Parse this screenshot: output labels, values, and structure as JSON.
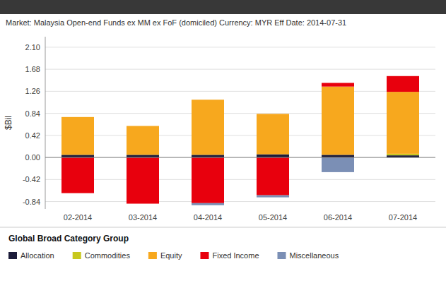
{
  "chart_data": {
    "type": "bar",
    "stacked": true,
    "grid": true,
    "legend": "bottom",
    "title": "Market: Malaysia Open-end Funds ex MM ex FoF (domiciled)   Currency: MYR   Eff Date: 2014-07-31",
    "ylabel": "$Bil",
    "legend_title": "Global Broad Category Group",
    "categories": [
      "02-2014",
      "03-2014",
      "04-2014",
      "05-2014",
      "06-2014",
      "07-2014"
    ],
    "ylim": [
      -0.98,
      2.3
    ],
    "yticks": [
      -0.84,
      -0.42,
      {
        "value": 0.0,
        "label": "0.00"
      },
      0.42,
      0.84,
      1.26,
      1.68,
      {
        "value": 2.1,
        "label": "2.10"
      }
    ],
    "series": [
      {
        "name": "Allocation",
        "color": "#1c1c3a",
        "values": [
          0.05,
          0.05,
          0.05,
          0.06,
          0.05,
          0.04
        ]
      },
      {
        "name": "Commodities",
        "color": "#c8c81e",
        "values": [
          0.0,
          0.0,
          0.0,
          0.0,
          0.0,
          0.03
        ]
      },
      {
        "name": "Equity",
        "color": "#f7a81e",
        "values": [
          0.72,
          0.55,
          1.05,
          0.77,
          1.3,
          1.18
        ]
      },
      {
        "name": "Fixed Income",
        "color": "#e8000d",
        "values": [
          -0.68,
          -0.88,
          -0.87,
          -0.72,
          0.07,
          0.3
        ]
      },
      {
        "name": "Miscellaneous",
        "color": "#7b8fb5",
        "values": [
          0.0,
          0.0,
          -0.04,
          -0.04,
          -0.28,
          0.0
        ]
      }
    ]
  }
}
